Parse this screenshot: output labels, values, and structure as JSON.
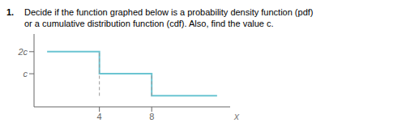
{
  "chart_data": {
    "type": "line",
    "title": "Decide if the function graphed below is a probability density function (pdf)",
    "subtitle": "or a cumulative distribution function (cdf).  Also, find the value c.",
    "annotations": [
      "1."
    ],
    "x_label": "x",
    "series": [
      {
        "x": [
          0,
          4,
          4,
          8,
          8,
          13
        ],
        "values": [
          2,
          2,
          1,
          1,
          0,
          0
        ],
        "color": "#6bc5d2",
        "line_style": "solid"
      },
      {
        "x": [
          4,
          4
        ],
        "values": [
          0,
          2
        ],
        "color": "#999999",
        "line_style": "dashed"
      },
      {
        "x": [
          8,
          8
        ],
        "values": [
          0,
          1
        ],
        "color": "#999999",
        "line_style": "dashed"
      }
    ],
    "xlim": [
      -1,
      14
    ],
    "ylim": [
      -0.5,
      2.8
    ],
    "xticks": [
      4,
      8
    ],
    "yticks": [
      {
        "value": 1,
        "label": "c"
      },
      {
        "value": 2,
        "label": "2c"
      }
    ],
    "grid": false
  }
}
